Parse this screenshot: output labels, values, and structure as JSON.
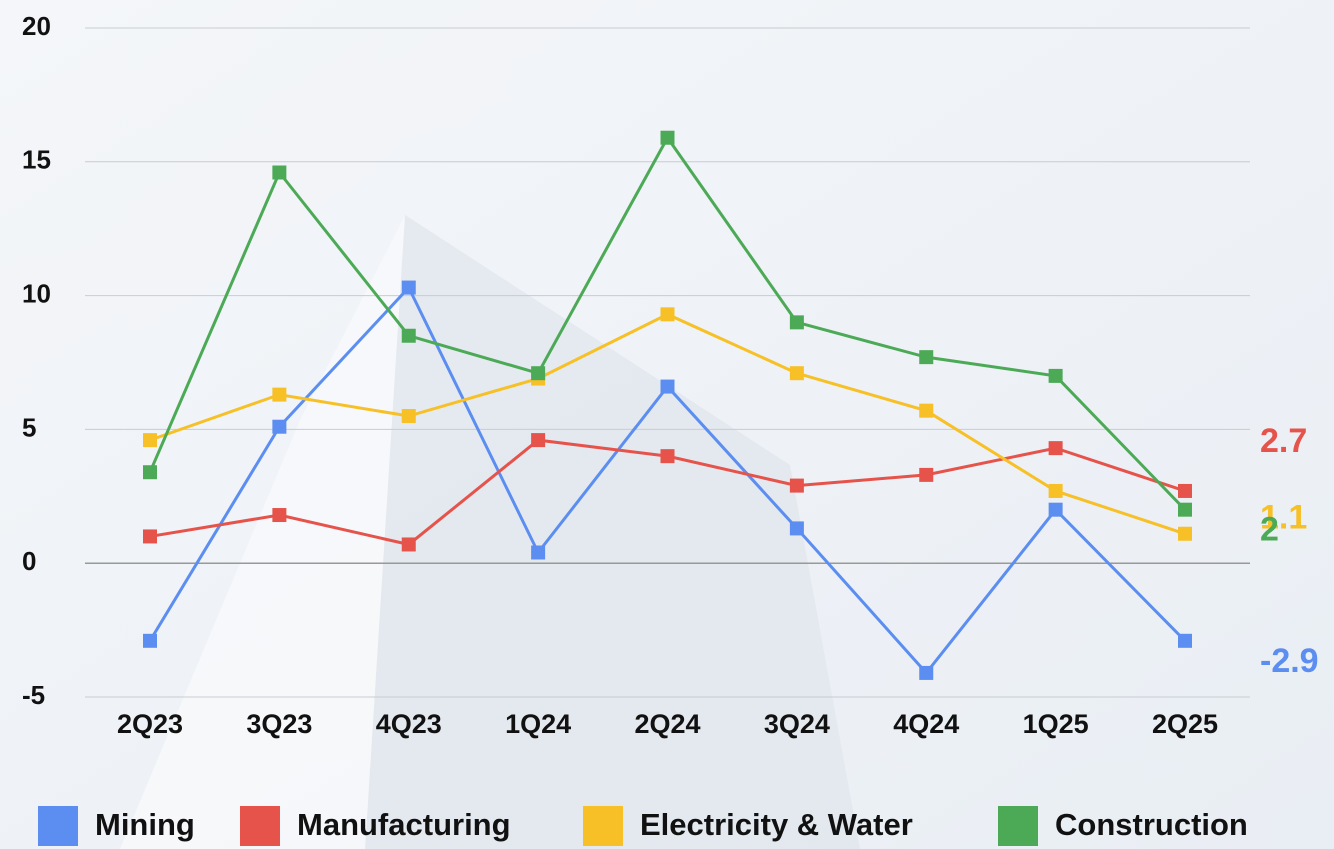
{
  "chart_data": {
    "type": "line",
    "categories": [
      "2Q23",
      "3Q23",
      "4Q23",
      "1Q24",
      "2Q24",
      "3Q24",
      "4Q24",
      "1Q25",
      "2Q25"
    ],
    "series": [
      {
        "name": "Mining",
        "color": "#5b8ef0",
        "values": [
          -2.9,
          5.1,
          10.3,
          0.4,
          6.6,
          1.3,
          -4.1,
          2.0,
          -2.9
        ]
      },
      {
        "name": "Manufacturing",
        "color": "#e5534b",
        "values": [
          1.0,
          1.8,
          0.7,
          4.6,
          4.0,
          2.9,
          3.3,
          4.3,
          2.7
        ]
      },
      {
        "name": "Electricity & Water",
        "color": "#f6c026",
        "values": [
          4.6,
          6.3,
          5.5,
          6.9,
          9.3,
          7.1,
          5.7,
          2.7,
          1.1
        ]
      },
      {
        "name": "Construction",
        "color": "#4caa57",
        "values": [
          3.4,
          14.6,
          8.5,
          7.1,
          15.9,
          9.0,
          7.7,
          7.0,
          2
        ]
      }
    ],
    "ylim": [
      -5,
      20
    ],
    "yticks": [
      -5,
      0,
      5,
      10,
      15,
      20
    ],
    "grid": true
  }
}
